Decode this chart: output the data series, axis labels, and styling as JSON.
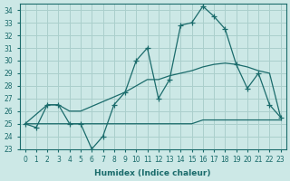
{
  "xlabel": "Humidex (Indice chaleur)",
  "ylabel": "",
  "background_color": "#cce8e6",
  "grid_color": "#aacfcc",
  "line_color": "#1a6b6b",
  "xlim": [
    -0.5,
    23.5
  ],
  "ylim": [
    23,
    34.5
  ],
  "yticks": [
    23,
    24,
    25,
    26,
    27,
    28,
    29,
    30,
    31,
    32,
    33,
    34
  ],
  "xticks": [
    0,
    1,
    2,
    3,
    4,
    5,
    6,
    7,
    8,
    9,
    10,
    11,
    12,
    13,
    14,
    15,
    16,
    17,
    18,
    19,
    20,
    21,
    22,
    23
  ],
  "line1_x": [
    0,
    1,
    2,
    3,
    4,
    5,
    6,
    7,
    8,
    9,
    10,
    11,
    12,
    13,
    14,
    15,
    16,
    17,
    18,
    19,
    20,
    21,
    22,
    23
  ],
  "line1_y": [
    25.0,
    24.7,
    26.5,
    26.5,
    25.0,
    25.0,
    23.0,
    24.0,
    26.5,
    27.5,
    30.0,
    31.0,
    27.0,
    28.5,
    32.8,
    33.0,
    34.3,
    33.5,
    32.5,
    29.7,
    27.8,
    29.0,
    26.5,
    25.5
  ],
  "line2_x": [
    0,
    1,
    2,
    3,
    4,
    5,
    6,
    7,
    8,
    9,
    10,
    11,
    12,
    13,
    14,
    15,
    16,
    17,
    18,
    19,
    20,
    21,
    22,
    23
  ],
  "line2_y": [
    25.0,
    25.0,
    25.0,
    25.0,
    25.0,
    25.0,
    25.0,
    25.0,
    25.0,
    25.0,
    25.0,
    25.0,
    25.0,
    25.0,
    25.0,
    25.0,
    25.3,
    25.3,
    25.3,
    25.3,
    25.3,
    25.3,
    25.3,
    25.3
  ],
  "line3_x": [
    0,
    2,
    3,
    4,
    5,
    9,
    10,
    11,
    12,
    13,
    14,
    15,
    16,
    17,
    18,
    19,
    20,
    21,
    22,
    23
  ],
  "line3_y": [
    25.0,
    26.5,
    26.5,
    26.0,
    26.0,
    27.5,
    28.0,
    28.5,
    28.5,
    28.8,
    29.0,
    29.2,
    29.5,
    29.7,
    29.8,
    29.7,
    29.5,
    29.2,
    29.0,
    25.5
  ]
}
